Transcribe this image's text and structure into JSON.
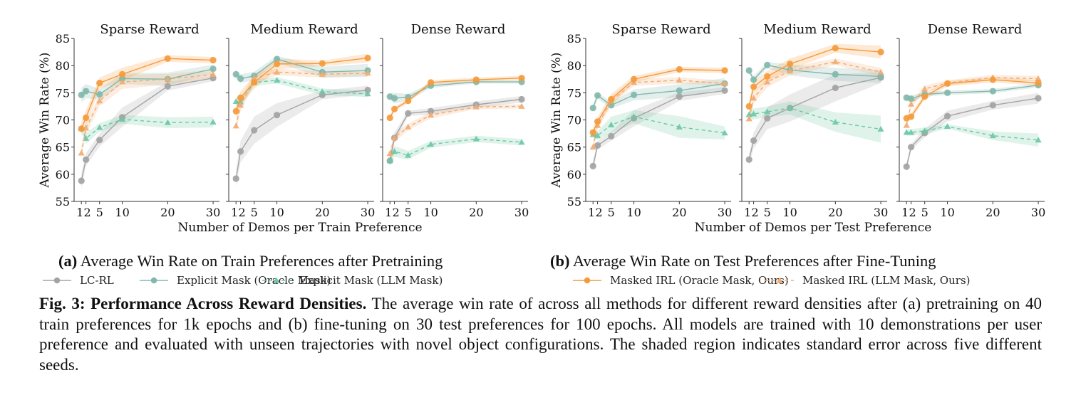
{
  "figure": {
    "subcaptions": [
      {
        "tag": "(a)",
        "text": " Average Win Rate on Train Preferences after Pretraining"
      },
      {
        "tag": "(b)",
        "text": " Average Win Rate on Test Preferences after Fine-Tuning"
      }
    ],
    "caption": {
      "head": "Fig. 3: Performance Across Reward Densities.",
      "body": " The average win rate of across all methods for different reward densities after (a) pretraining on 40 train preferences for 1k epochs and (b) fine-tuning on 30 test preferences for 100 epochs. All models are trained with 10 demonstrations per user preference and evaluated with unseen trajectories with novel object configurations. The shaded region indicates standard error across five different seeds."
    }
  },
  "legend": [
    {
      "name": "LC-RL",
      "color": "#a3a3a3",
      "dash": false,
      "marker": "circle"
    },
    {
      "name": "Explicit Mask (Oracle Mask)",
      "color": "#82b8ab",
      "dash": false,
      "marker": "circle"
    },
    {
      "name": "Explicit Mask (LLM Mask)",
      "color": "#6cc8a6",
      "dash": true,
      "marker": "triangle"
    },
    {
      "name": "Masked IRL (Oracle Mask, Ours)",
      "color": "#f59a3c",
      "dash": false,
      "marker": "circle"
    },
    {
      "name": "Masked IRL (LLM Mask, Ours)",
      "color": "#f2ab72",
      "dash": true,
      "marker": "triangle"
    }
  ],
  "chart_data": [
    {
      "type": "line",
      "group": "(a) Train Preferences after Pretraining",
      "title": "Sparse Reward",
      "xlabel": "Number of Demos per Train Preference",
      "ylabel": "Average Win Rate (%)",
      "x": [
        1,
        2,
        5,
        10,
        20,
        30
      ],
      "xticks": [
        "1",
        "2",
        "5",
        "10",
        "20",
        "30"
      ],
      "ylim": [
        55,
        85
      ],
      "yticks": [
        "55",
        "60",
        "65",
        "70",
        "75",
        "80",
        "85"
      ],
      "grid": false,
      "series": [
        {
          "name": "LC-RL",
          "values": [
            58.8,
            62.7,
            66.3,
            70.5,
            76.2,
            77.7
          ],
          "stderr": [
            1.5,
            1.2,
            1.2,
            1.8,
            0.8,
            0.6
          ]
        },
        {
          "name": "Explicit Mask (Oracle Mask)",
          "values": [
            74.6,
            75.3,
            74.7,
            77.6,
            77.5,
            79.4
          ],
          "stderr": [
            1.4,
            1.3,
            1.0,
            1.0,
            1.2,
            0.8
          ]
        },
        {
          "name": "Explicit Mask (LLM Mask)",
          "values": [
            68.4,
            66.6,
            68.6,
            70.1,
            69.5,
            69.6
          ],
          "stderr": [
            0.8,
            1.0,
            0.8,
            0.8,
            1.0,
            1.0
          ]
        },
        {
          "name": "Masked IRL (Oracle Mask, Ours)",
          "values": [
            68.4,
            70.4,
            76.8,
            78.4,
            81.3,
            81.0
          ],
          "stderr": [
            1.2,
            1.4,
            1.0,
            1.2,
            0.6,
            0.6
          ]
        },
        {
          "name": "Masked IRL (LLM Mask, Ours)",
          "values": [
            63.9,
            68.5,
            73.5,
            77.0,
            77.5,
            78.4
          ],
          "stderr": [
            1.0,
            1.2,
            1.0,
            1.3,
            1.0,
            0.8
          ]
        }
      ]
    },
    {
      "type": "line",
      "group": "(a) Train Preferences after Pretraining",
      "title": "Medium Reward",
      "xlabel": "Number of Demos per Train Preference",
      "x": [
        1,
        2,
        5,
        10,
        20,
        30
      ],
      "xticks": [
        "1",
        "2",
        "5",
        "10",
        "20",
        "30"
      ],
      "ylim": [
        55,
        85
      ],
      "grid": false,
      "series": [
        {
          "name": "LC-RL",
          "values": [
            59.2,
            64.2,
            68.1,
            70.9,
            74.6,
            75.5
          ],
          "stderr": [
            1.5,
            2.0,
            2.5,
            2.2,
            0.8,
            0.8
          ]
        },
        {
          "name": "Explicit Mask (Oracle Mask)",
          "values": [
            78.4,
            77.6,
            78.1,
            81.2,
            78.8,
            79.1
          ],
          "stderr": [
            0.8,
            0.8,
            0.8,
            0.6,
            1.0,
            1.2
          ]
        },
        {
          "name": "Explicit Mask (LLM Mask)",
          "values": [
            73.4,
            73.3,
            76.9,
            77.3,
            75.2,
            74.8
          ],
          "stderr": [
            0.8,
            0.8,
            0.6,
            0.6,
            0.6,
            0.6
          ]
        },
        {
          "name": "Masked IRL (Oracle Mask, Ours)",
          "values": [
            71.6,
            74.1,
            76.9,
            80.3,
            80.4,
            81.4
          ],
          "stderr": [
            1.2,
            1.2,
            1.2,
            1.0,
            0.5,
            0.8
          ]
        },
        {
          "name": "Masked IRL (LLM Mask, Ours)",
          "values": [
            68.9,
            72.7,
            77.7,
            78.8,
            78.4,
            78.6
          ],
          "stderr": [
            1.0,
            1.2,
            1.0,
            0.6,
            0.6,
            0.5
          ]
        }
      ]
    },
    {
      "type": "line",
      "group": "(a) Train Preferences after Pretraining",
      "title": "Dense Reward",
      "xlabel": "Number of Demos per Train Preference",
      "x": [
        1,
        2,
        5,
        10,
        20,
        30
      ],
      "xticks": [
        "1",
        "2",
        "5",
        "10",
        "20",
        "30"
      ],
      "ylim": [
        55,
        85
      ],
      "grid": false,
      "series": [
        {
          "name": "LC-RL",
          "values": [
            62.5,
            66.7,
            71.2,
            71.6,
            72.8,
            73.8
          ],
          "stderr": [
            1.2,
            1.0,
            0.5,
            0.6,
            0.6,
            0.6
          ]
        },
        {
          "name": "Explicit Mask (Oracle Mask)",
          "values": [
            74.3,
            74.0,
            74.2,
            76.3,
            77.0,
            77.0
          ],
          "stderr": [
            0.6,
            1.0,
            0.6,
            0.4,
            0.3,
            0.3
          ]
        },
        {
          "name": "Explicit Mask (LLM Mask)",
          "values": [
            62.5,
            64.2,
            63.5,
            65.5,
            66.5,
            65.9
          ],
          "stderr": [
            0.6,
            1.0,
            0.8,
            0.6,
            0.6,
            0.6
          ]
        },
        {
          "name": "Masked IRL (Oracle Mask, Ours)",
          "values": [
            70.4,
            72.0,
            73.5,
            76.9,
            77.4,
            77.7
          ],
          "stderr": [
            0.4,
            0.4,
            0.4,
            0.4,
            0.4,
            0.4
          ]
        },
        {
          "name": "Masked IRL (LLM Mask, Ours)",
          "values": [
            63.8,
            66.7,
            68.7,
            70.9,
            72.4,
            72.5
          ],
          "stderr": [
            0.8,
            0.8,
            0.6,
            0.6,
            0.4,
            0.4
          ]
        }
      ]
    },
    {
      "type": "line",
      "group": "(b) Test Preferences after Fine-Tuning",
      "title": "Sparse Reward",
      "xlabel": "Number of Demos per Test Preference",
      "ylabel": "Average Win Rate (%)",
      "x": [
        1,
        2,
        5,
        10,
        20,
        30
      ],
      "xticks": [
        "1",
        "2",
        "5",
        "10",
        "20",
        "30"
      ],
      "ylim": [
        55,
        85
      ],
      "yticks": [
        "55",
        "60",
        "65",
        "70",
        "75",
        "80",
        "85"
      ],
      "grid": false,
      "series": [
        {
          "name": "LC-RL",
          "values": [
            61.5,
            65.3,
            67.0,
            70.3,
            74.3,
            75.4
          ],
          "stderr": [
            1.0,
            0.8,
            0.8,
            1.5,
            0.8,
            0.6
          ]
        },
        {
          "name": "Explicit Mask (Oracle Mask)",
          "values": [
            72.2,
            74.5,
            72.7,
            74.6,
            75.4,
            76.7
          ],
          "stderr": [
            0.6,
            0.6,
            0.6,
            1.0,
            1.2,
            1.0
          ]
        },
        {
          "name": "Explicit Mask (LLM Mask)",
          "values": [
            67.3,
            67.1,
            69.1,
            70.6,
            68.7,
            67.6
          ],
          "stderr": [
            0.6,
            0.8,
            1.5,
            1.2,
            2.0,
            1.2
          ]
        },
        {
          "name": "Masked IRL (Oracle Mask, Ours)",
          "values": [
            67.7,
            69.7,
            73.8,
            77.5,
            79.3,
            79.1
          ],
          "stderr": [
            1.0,
            0.8,
            1.0,
            0.6,
            0.5,
            0.5
          ]
        },
        {
          "name": "Masked IRL (LLM Mask, Ours)",
          "values": [
            65.0,
            69.0,
            73.5,
            76.9,
            77.3,
            76.7
          ],
          "stderr": [
            1.0,
            0.8,
            0.8,
            0.6,
            0.6,
            0.5
          ]
        }
      ]
    },
    {
      "type": "line",
      "group": "(b) Test Preferences after Fine-Tuning",
      "title": "Medium Reward",
      "xlabel": "Number of Demos per Test Preference",
      "x": [
        1,
        2,
        5,
        10,
        20,
        30
      ],
      "xticks": [
        "1",
        "2",
        "5",
        "10",
        "20",
        "30"
      ],
      "ylim": [
        55,
        85
      ],
      "grid": false,
      "series": [
        {
          "name": "LC-RL",
          "values": [
            62.7,
            66.2,
            70.3,
            72.2,
            75.9,
            77.8
          ],
          "stderr": [
            1.0,
            1.5,
            2.0,
            2.5,
            2.5,
            1.0
          ]
        },
        {
          "name": "Explicit Mask (Oracle Mask)",
          "values": [
            79.1,
            77.4,
            80.1,
            79.2,
            78.4,
            78.0
          ],
          "stderr": [
            0.6,
            0.6,
            0.6,
            1.0,
            1.2,
            1.2
          ]
        },
        {
          "name": "Explicit Mask (LLM Mask)",
          "values": [
            71.0,
            71.1,
            71.5,
            72.2,
            69.6,
            68.3
          ],
          "stderr": [
            1.0,
            1.0,
            1.0,
            1.2,
            1.8,
            2.5
          ]
        },
        {
          "name": "Masked IRL (Oracle Mask, Ours)",
          "values": [
            72.5,
            76.1,
            78.0,
            80.3,
            83.2,
            82.5
          ],
          "stderr": [
            1.0,
            1.0,
            1.0,
            1.0,
            0.8,
            1.2
          ]
        },
        {
          "name": "Masked IRL (LLM Mask, Ours)",
          "values": [
            70.2,
            74.0,
            77.0,
            79.0,
            80.7,
            78.8
          ],
          "stderr": [
            1.0,
            1.0,
            1.0,
            0.8,
            0.6,
            0.8
          ]
        }
      ]
    },
    {
      "type": "line",
      "group": "(b) Test Preferences after Fine-Tuning",
      "title": "Dense Reward",
      "xlabel": "Number of Demos per Test Preference",
      "x": [
        1,
        2,
        5,
        10,
        20,
        30
      ],
      "xticks": [
        "1",
        "2",
        "5",
        "10",
        "20",
        "30"
      ],
      "ylim": [
        55,
        85
      ],
      "grid": false,
      "series": [
        {
          "name": "LC-RL",
          "values": [
            61.4,
            65.0,
            67.6,
            70.7,
            72.7,
            74.0
          ],
          "stderr": [
            0.8,
            0.6,
            0.8,
            1.0,
            0.8,
            1.0
          ]
        },
        {
          "name": "Explicit Mask (Oracle Mask)",
          "values": [
            74.1,
            73.9,
            74.7,
            75.0,
            75.3,
            76.4
          ],
          "stderr": [
            0.6,
            0.6,
            0.4,
            0.4,
            0.4,
            0.4
          ]
        },
        {
          "name": "Explicit Mask (LLM Mask)",
          "values": [
            67.7,
            67.7,
            68.0,
            68.8,
            67.1,
            66.3
          ],
          "stderr": [
            0.6,
            0.6,
            0.6,
            0.4,
            0.8,
            1.2
          ]
        },
        {
          "name": "Masked IRL (Oracle Mask, Ours)",
          "values": [
            70.3,
            70.6,
            74.3,
            76.7,
            77.4,
            76.8
          ],
          "stderr": [
            0.6,
            0.6,
            0.6,
            0.5,
            0.5,
            0.5
          ]
        },
        {
          "name": "Masked IRL (LLM Mask, Ours)",
          "values": [
            69.0,
            72.9,
            75.7,
            76.8,
            77.8,
            77.6
          ],
          "stderr": [
            0.6,
            0.6,
            0.6,
            0.5,
            0.5,
            0.5
          ]
        }
      ]
    }
  ]
}
